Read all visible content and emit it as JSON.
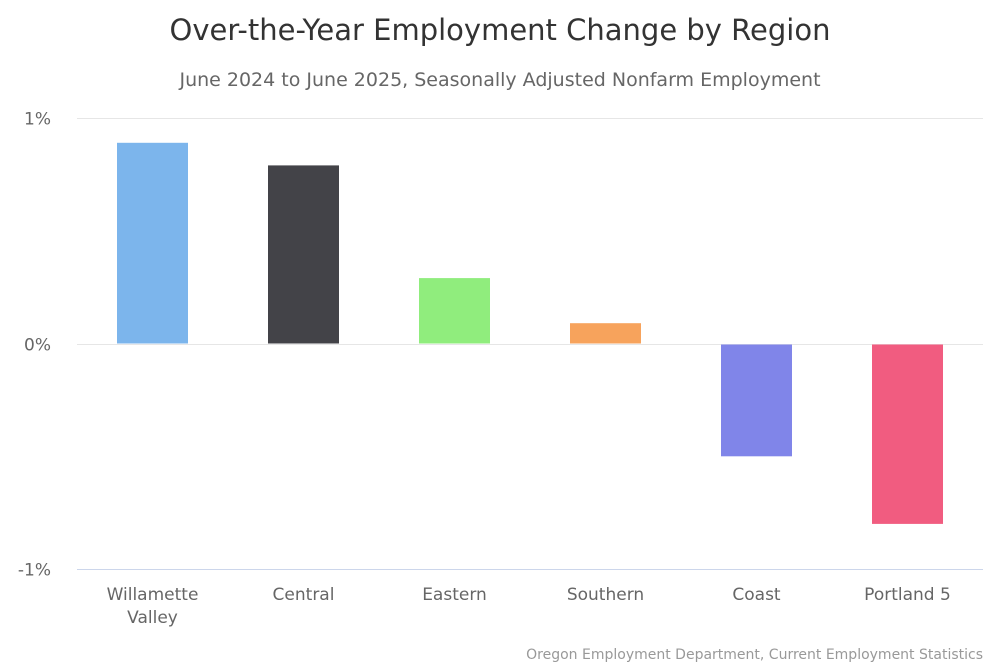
{
  "chart_data": {
    "type": "bar",
    "title": "Over-the-Year Employment Change by Region",
    "subtitle": "June 2024 to June 2025, Seasonally Adjusted Nonfarm Employment",
    "categories": [
      [
        "Willamette",
        "Valley"
      ],
      [
        "Central"
      ],
      [
        "Eastern"
      ],
      [
        "Southern"
      ],
      [
        "Coast"
      ],
      [
        "Portland 5"
      ]
    ],
    "values": [
      0.89,
      0.79,
      0.29,
      0.09,
      -0.5,
      -0.8
    ],
    "colors": [
      "#7cb5ec",
      "#434348",
      "#90ed7d",
      "#f7a35c",
      "#8085e9",
      "#f15c80"
    ],
    "ylim": [
      -1,
      1
    ],
    "yticks": [
      {
        "value": 1,
        "label": "1%"
      },
      {
        "value": 0,
        "label": "0%"
      },
      {
        "value": -1,
        "label": "-1%"
      }
    ],
    "xlabel": "",
    "ylabel": "",
    "legend": "none",
    "grid": true,
    "credit": "Oregon Employment Department, Current Employment Statistics"
  }
}
